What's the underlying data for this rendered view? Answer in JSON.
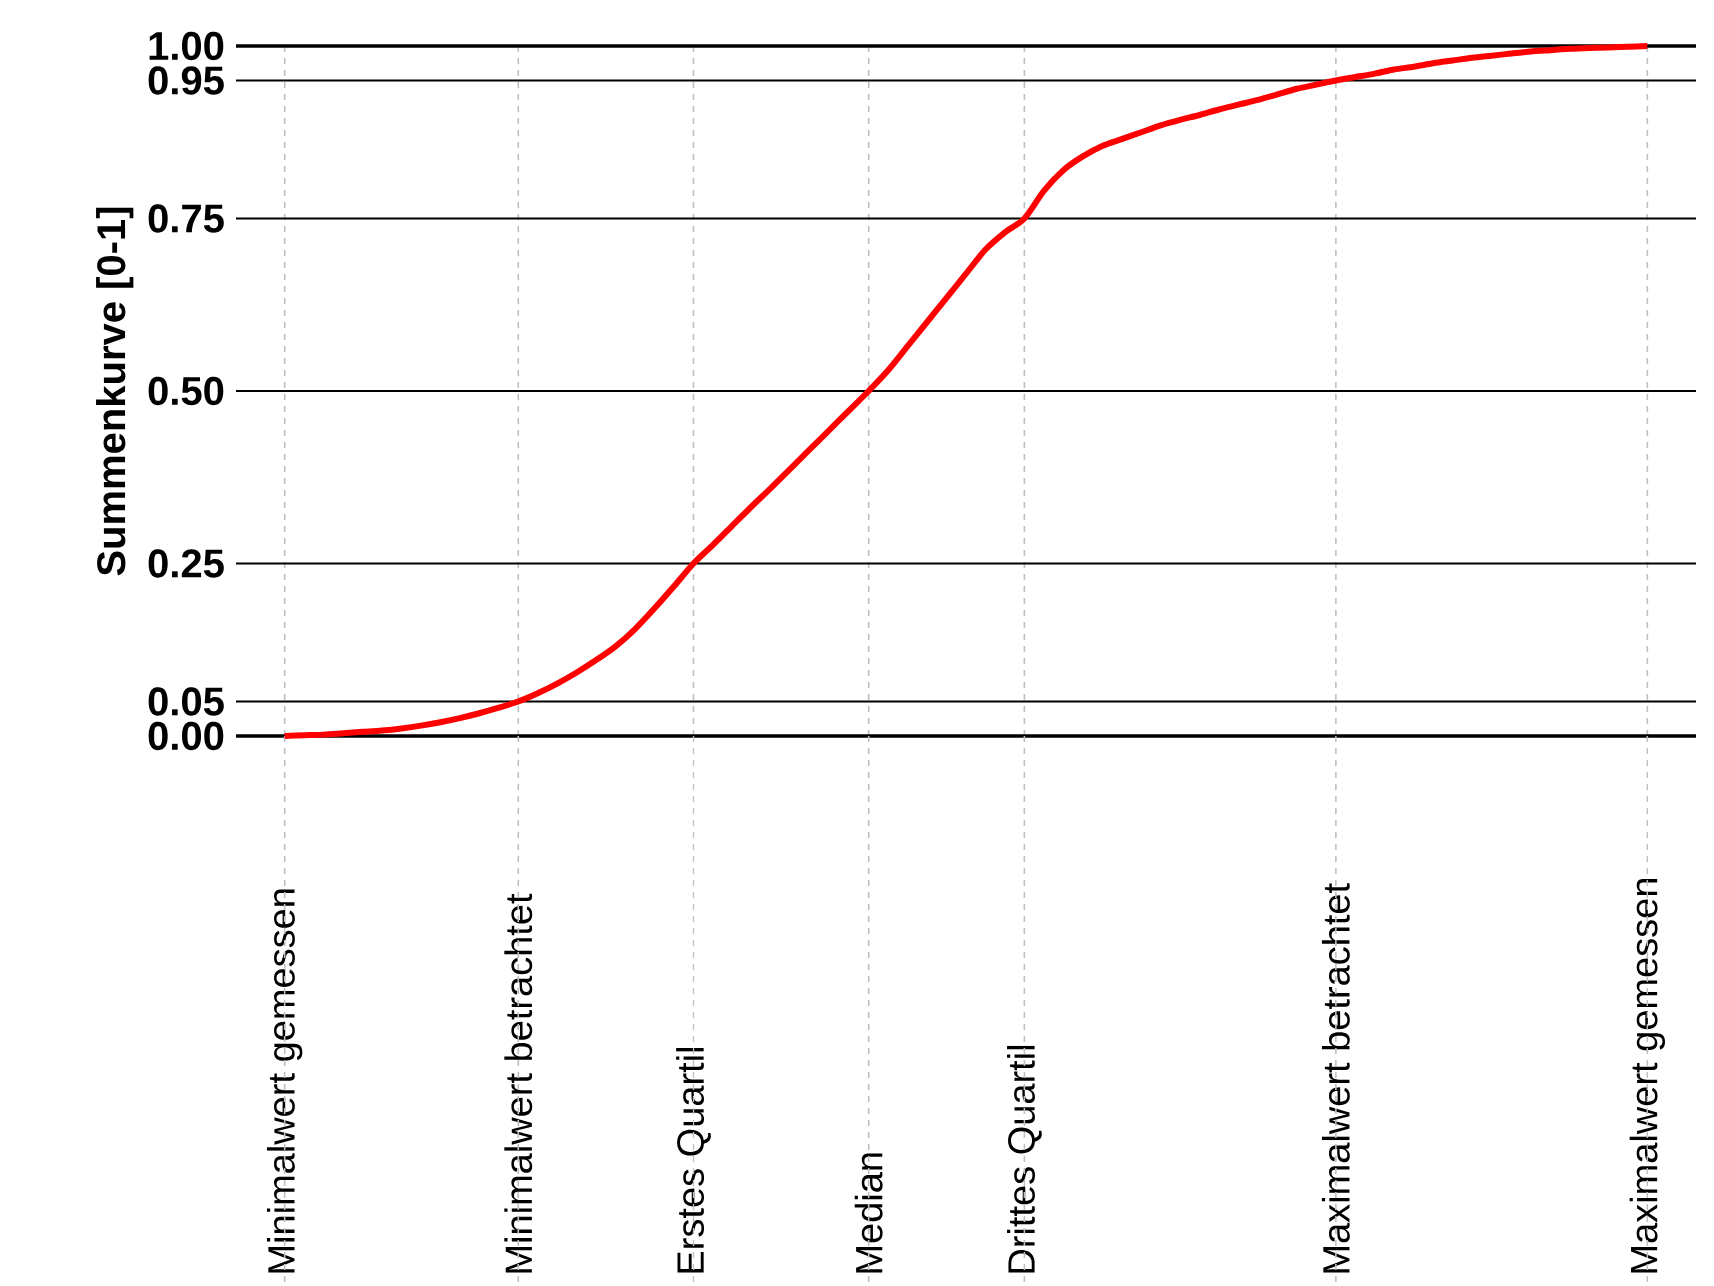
{
  "chart_data": {
    "type": "line",
    "ylabel": "Summenkurve [0-1]",
    "categories": [
      null,
      null,
      "Minimalwert gemessen",
      null,
      null,
      null,
      null,
      null,
      null,
      null,
      null,
      null,
      null,
      null,
      "Minimalwert betrachtet",
      null,
      null,
      null,
      null,
      null,
      null,
      null,
      null,
      "Erstes Quartil",
      null,
      null,
      null,
      null,
      null,
      null,
      null,
      null,
      "Median",
      null,
      null,
      null,
      null,
      null,
      null,
      null,
      "Drittes Quartil",
      null,
      null,
      null,
      null,
      null,
      null,
      null,
      null,
      null,
      null,
      null,
      null,
      null,
      null,
      null,
      "Maximalwert betrachtet",
      null,
      null,
      null,
      null,
      null,
      null,
      null,
      null,
      null,
      null,
      null,
      null,
      null,
      null,
      null,
      "Maximalwert gemessen",
      null,
      null
    ],
    "series": [
      {
        "color": "#ff0000",
        "values": [
          null,
          null,
          0,
          0.001,
          0.002,
          0.004,
          0.006,
          0.008,
          0.011,
          0.015,
          0.02,
          0.026,
          0.033,
          0.041,
          0.05,
          0.062,
          0.076,
          0.092,
          0.11,
          0.13,
          0.155,
          0.185,
          0.217,
          0.25,
          0.277,
          0.305,
          0.333,
          0.36,
          0.388,
          0.416,
          0.444,
          0.472,
          0.5,
          0.53,
          0.565,
          0.6,
          0.635,
          0.67,
          0.705,
          0.73,
          0.75,
          0.79,
          0.82,
          0.84,
          0.855,
          0.865,
          0.875,
          0.885,
          0.893,
          0.9,
          0.908,
          0.915,
          0.922,
          0.93,
          0.938,
          0.944,
          0.95,
          0.955,
          0.96,
          0.966,
          0.97,
          0.975,
          0.979,
          0.983,
          0.986,
          0.989,
          0.992,
          0.994,
          0.996,
          0.997,
          0.998,
          0.999,
          1.0,
          null,
          null
        ]
      }
    ],
    "ylim": [
      0,
      1
    ],
    "yticks": [
      {
        "value": 0,
        "label": "0.00"
      },
      {
        "value": 0.05,
        "label": "0.05"
      },
      {
        "value": 0.25,
        "label": "0.25"
      },
      {
        "value": 0.5,
        "label": "0.50"
      },
      {
        "value": 0.75,
        "label": "0.75"
      },
      {
        "value": 0.95,
        "label": "0.95"
      },
      {
        "value": 1,
        "label": "1.00"
      }
    ],
    "grid": true
  }
}
